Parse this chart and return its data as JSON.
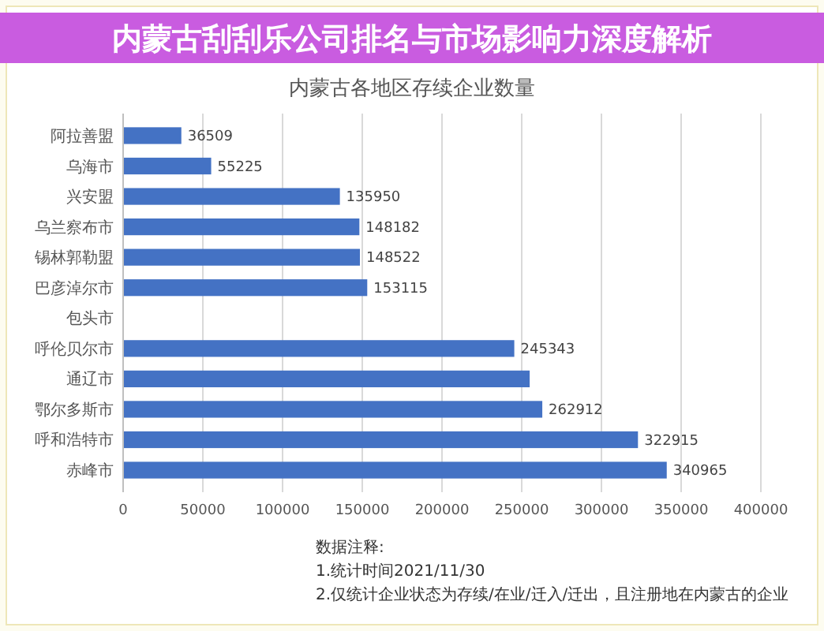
{
  "chart_data": {
    "type": "bar",
    "orientation": "horizontal",
    "title": "内蒙古刮刮乐公司排名与市场影响力深度解析",
    "subtitle": "内蒙古各地区存续企业数量",
    "categories": [
      "阿拉善盟",
      "乌海市",
      "兴安盟",
      "乌兰察布市",
      "锡林郭勒盟",
      "巴彦淖尔市",
      "包头市",
      "呼伦贝尔市",
      "通辽市",
      "鄂尔多斯市",
      "呼和浩特市",
      "赤峰市"
    ],
    "values": [
      36509,
      55225,
      135950,
      148182,
      148522,
      153115,
      null,
      245343,
      255000,
      262912,
      322915,
      340965
    ],
    "value_labels": [
      "36509",
      "55225",
      "135950",
      "148182",
      "148522",
      "153115",
      null,
      "245343",
      null,
      "262912",
      "322915",
      "340965"
    ],
    "color": "#4472c4",
    "xlim": [
      0,
      400000
    ],
    "xticks": [
      0,
      50000,
      100000,
      150000,
      200000,
      250000,
      300000,
      350000,
      400000
    ],
    "grid": "x",
    "annotations": [
      "数据注释:",
      "1.统计时间2021/11/30",
      "2.仅统计企业状态为存续/在业/迁入/迁出，且注册地在内蒙古的企业"
    ]
  }
}
